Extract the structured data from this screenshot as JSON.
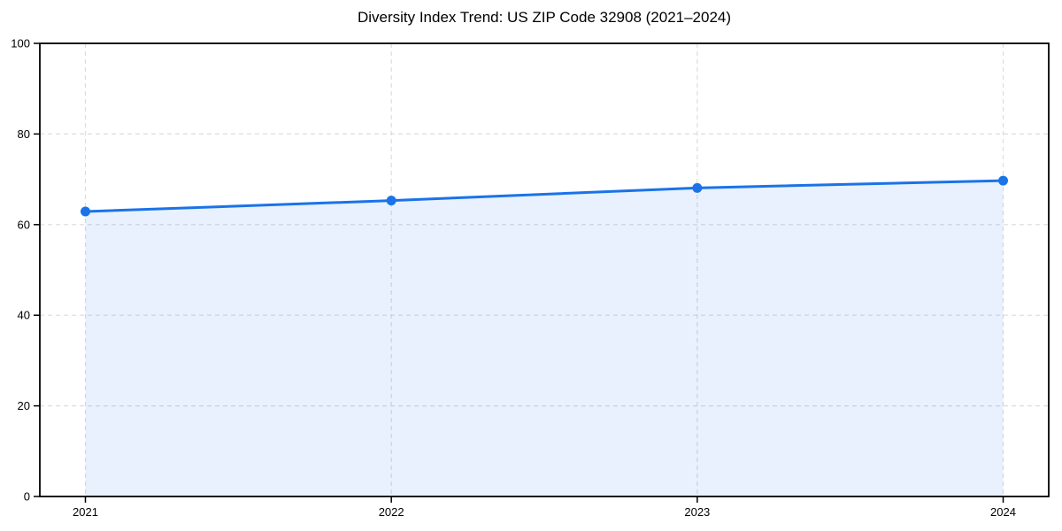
{
  "chart_data": {
    "type": "area",
    "title": "Diversity Index Trend: US ZIP Code 32908 (2021–2024)",
    "xlabel": "",
    "ylabel": "",
    "categories": [
      "2021",
      "2022",
      "2023",
      "2024"
    ],
    "series": [
      {
        "name": "Diversity Index",
        "values": [
          62.9,
          65.3,
          68.1,
          69.7
        ]
      }
    ],
    "ylim": [
      0,
      100
    ],
    "yticks": [
      0,
      20,
      40,
      60,
      80,
      100
    ],
    "grid": true,
    "grid_style": "dashed",
    "legend_position": "none",
    "colors": {
      "line": "#1a73e8",
      "marker": "#1a73e8",
      "fill": "rgba(26,115,232,0.10)",
      "grid": "#dcdcdc",
      "spine": "#000000",
      "text": "#000000",
      "background": "#ffffff"
    }
  }
}
